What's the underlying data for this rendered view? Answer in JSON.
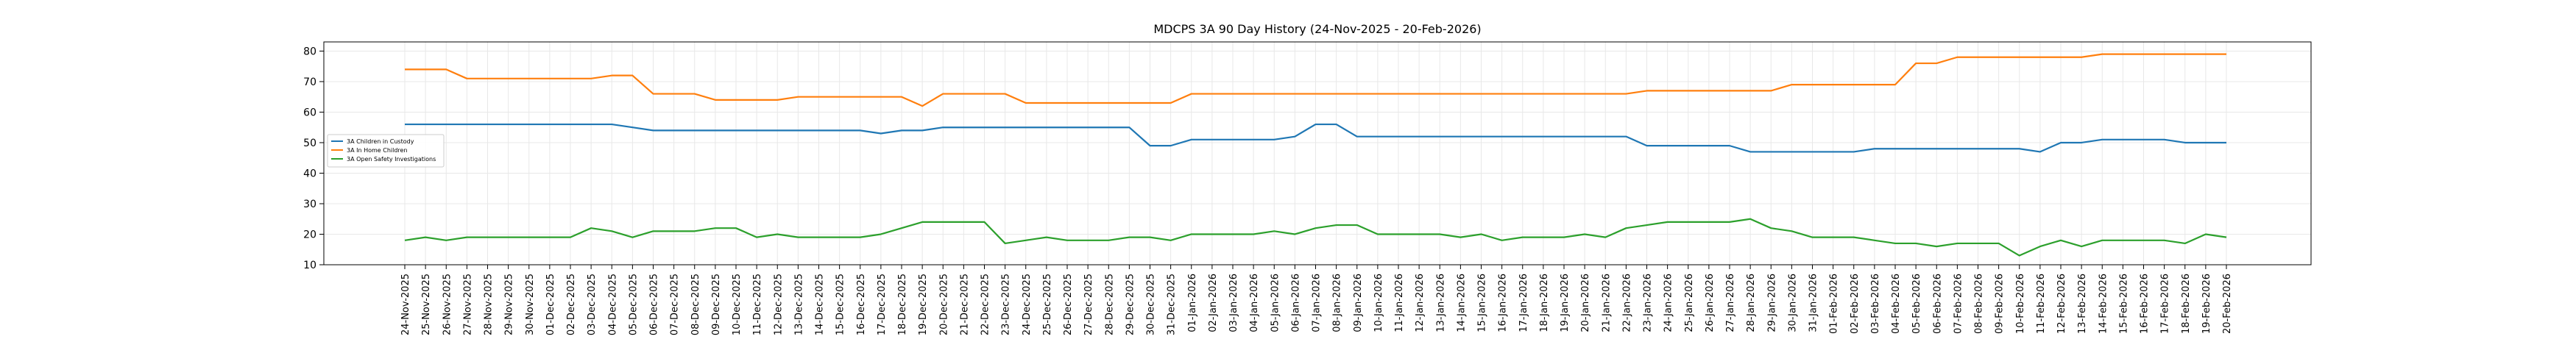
{
  "chart_data": {
    "type": "line",
    "title": "MDCPS 3A 90 Day History (24-Nov-2025 - 20-Feb-2026)",
    "xlabel": "",
    "ylabel": "",
    "ylim": [
      10,
      83
    ],
    "yticks": [
      10,
      20,
      30,
      40,
      50,
      60,
      70,
      80
    ],
    "grid": true,
    "legend_position": "center-left",
    "categories": [
      "24-Nov-2025",
      "25-Nov-2025",
      "26-Nov-2025",
      "27-Nov-2025",
      "28-Nov-2025",
      "29-Nov-2025",
      "30-Nov-2025",
      "01-Dec-2025",
      "02-Dec-2025",
      "03-Dec-2025",
      "04-Dec-2025",
      "05-Dec-2025",
      "06-Dec-2025",
      "07-Dec-2025",
      "08-Dec-2025",
      "09-Dec-2025",
      "10-Dec-2025",
      "11-Dec-2025",
      "12-Dec-2025",
      "13-Dec-2025",
      "14-Dec-2025",
      "15-Dec-2025",
      "16-Dec-2025",
      "17-Dec-2025",
      "18-Dec-2025",
      "19-Dec-2025",
      "20-Dec-2025",
      "21-Dec-2025",
      "22-Dec-2025",
      "23-Dec-2025",
      "24-Dec-2025",
      "25-Dec-2025",
      "26-Dec-2025",
      "27-Dec-2025",
      "28-Dec-2025",
      "29-Dec-2025",
      "30-Dec-2025",
      "31-Dec-2025",
      "01-Jan-2026",
      "02-Jan-2026",
      "03-Jan-2026",
      "04-Jan-2026",
      "05-Jan-2026",
      "06-Jan-2026",
      "07-Jan-2026",
      "08-Jan-2026",
      "09-Jan-2026",
      "10-Jan-2026",
      "11-Jan-2026",
      "12-Jan-2026",
      "13-Jan-2026",
      "14-Jan-2026",
      "15-Jan-2026",
      "16-Jan-2026",
      "17-Jan-2026",
      "18-Jan-2026",
      "19-Jan-2026",
      "20-Jan-2026",
      "21-Jan-2026",
      "22-Jan-2026",
      "23-Jan-2026",
      "24-Jan-2026",
      "25-Jan-2026",
      "26-Jan-2026",
      "27-Jan-2026",
      "28-Jan-2026",
      "29-Jan-2026",
      "30-Jan-2026",
      "31-Jan-2026",
      "01-Feb-2026",
      "02-Feb-2026",
      "03-Feb-2026",
      "04-Feb-2026",
      "05-Feb-2026",
      "06-Feb-2026",
      "07-Feb-2026",
      "08-Feb-2026",
      "09-Feb-2026",
      "10-Feb-2026",
      "11-Feb-2026",
      "12-Feb-2026",
      "13-Feb-2026",
      "14-Feb-2026",
      "15-Feb-2026",
      "16-Feb-2026",
      "17-Feb-2026",
      "18-Feb-2026",
      "19-Feb-2026",
      "20-Feb-2026"
    ],
    "series": [
      {
        "name": "3A Children in Custody",
        "color": "#1f77b4",
        "values": [
          56,
          56,
          56,
          56,
          56,
          56,
          56,
          56,
          56,
          56,
          56,
          55,
          54,
          54,
          54,
          54,
          54,
          54,
          54,
          54,
          54,
          54,
          54,
          53,
          54,
          54,
          55,
          55,
          55,
          55,
          55,
          55,
          55,
          55,
          55,
          55,
          49,
          49,
          51,
          51,
          51,
          51,
          51,
          52,
          56,
          56,
          52,
          52,
          52,
          52,
          52,
          52,
          52,
          52,
          52,
          52,
          52,
          52,
          52,
          52,
          49,
          49,
          49,
          49,
          49,
          47,
          47,
          47,
          47,
          47,
          47,
          48,
          48,
          48,
          48,
          48,
          48,
          48,
          48,
          47,
          50,
          50,
          51,
          51,
          51,
          51,
          50,
          50,
          50
        ]
      },
      {
        "name": "3A In Home Children",
        "color": "#ff7f0e",
        "values": [
          74,
          74,
          74,
          71,
          71,
          71,
          71,
          71,
          71,
          71,
          72,
          72,
          66,
          66,
          66,
          64,
          64,
          64,
          64,
          65,
          65,
          65,
          65,
          65,
          65,
          62,
          66,
          66,
          66,
          66,
          63,
          63,
          63,
          63,
          63,
          63,
          63,
          63,
          66,
          66,
          66,
          66,
          66,
          66,
          66,
          66,
          66,
          66,
          66,
          66,
          66,
          66,
          66,
          66,
          66,
          66,
          66,
          66,
          66,
          66,
          67,
          67,
          67,
          67,
          67,
          67,
          67,
          69,
          69,
          69,
          69,
          69,
          69,
          76,
          76,
          78,
          78,
          78,
          78,
          78,
          78,
          78,
          79,
          79,
          79,
          79,
          79,
          79,
          79
        ]
      },
      {
        "name": "3A Open Safety Investigations",
        "color": "#2ca02c",
        "values": [
          18,
          19,
          18,
          19,
          19,
          19,
          19,
          19,
          19,
          22,
          21,
          19,
          21,
          21,
          21,
          22,
          22,
          19,
          20,
          19,
          19,
          19,
          19,
          20,
          22,
          24,
          24,
          24,
          24,
          17,
          18,
          19,
          18,
          18,
          18,
          19,
          19,
          18,
          20,
          20,
          20,
          20,
          21,
          20,
          22,
          23,
          23,
          20,
          20,
          20,
          20,
          19,
          20,
          18,
          19,
          19,
          19,
          20,
          19,
          22,
          23,
          24,
          24,
          24,
          24,
          25,
          22,
          21,
          19,
          19,
          19,
          18,
          17,
          17,
          16,
          17,
          17,
          17,
          13,
          16,
          18,
          16,
          18,
          18,
          18,
          18,
          17,
          20,
          19
        ]
      }
    ]
  }
}
